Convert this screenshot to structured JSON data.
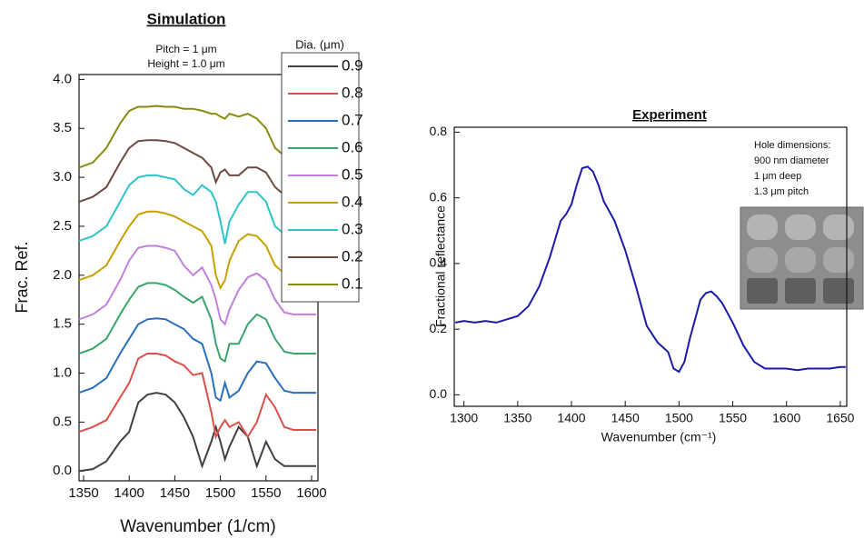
{
  "chart_data": [
    {
      "type": "line",
      "title": "Simulation",
      "annotations": [
        "Pitch = 1 μm",
        "Height = 1.0 μm"
      ],
      "xlabel": "Wavenumber (1/cm)",
      "ylabel": "Frac. Ref.",
      "legend_title": "Dia. (μm)",
      "legend": "upper right",
      "x": [
        1345,
        1360,
        1375,
        1390,
        1400,
        1410,
        1420,
        1430,
        1440,
        1450,
        1460,
        1470,
        1480,
        1490,
        1495,
        1500,
        1505,
        1510,
        1520,
        1530,
        1540,
        1550,
        1560,
        1570,
        1580,
        1590,
        1605
      ],
      "series": [
        {
          "name": "0.9",
          "color": "#404040",
          "values": [
            0.0,
            0.02,
            0.1,
            0.3,
            0.4,
            0.7,
            0.78,
            0.8,
            0.78,
            0.7,
            0.55,
            0.35,
            0.05,
            0.3,
            0.45,
            0.3,
            0.12,
            0.25,
            0.45,
            0.35,
            0.05,
            0.3,
            0.12,
            0.05,
            0.05,
            0.05,
            0.05
          ]
        },
        {
          "name": "0.8",
          "color": "#dc4f4a",
          "values": [
            0.4,
            0.45,
            0.52,
            0.75,
            0.9,
            1.15,
            1.2,
            1.2,
            1.18,
            1.12,
            1.08,
            0.98,
            1.0,
            0.6,
            0.35,
            0.45,
            0.52,
            0.45,
            0.5,
            0.35,
            0.5,
            0.78,
            0.65,
            0.45,
            0.42,
            0.42,
            0.42
          ]
        },
        {
          "name": "0.7",
          "color": "#2a6ebb",
          "values": [
            0.8,
            0.85,
            0.95,
            1.2,
            1.35,
            1.5,
            1.55,
            1.56,
            1.55,
            1.5,
            1.45,
            1.35,
            1.3,
            1.0,
            0.75,
            0.72,
            0.9,
            0.75,
            0.82,
            1.0,
            1.12,
            1.1,
            0.95,
            0.82,
            0.8,
            0.8,
            0.8
          ]
        },
        {
          "name": "0.6",
          "color": "#3aa56a",
          "values": [
            1.2,
            1.25,
            1.35,
            1.6,
            1.75,
            1.88,
            1.92,
            1.92,
            1.9,
            1.85,
            1.78,
            1.72,
            1.78,
            1.55,
            1.3,
            1.15,
            1.12,
            1.3,
            1.3,
            1.5,
            1.6,
            1.55,
            1.35,
            1.22,
            1.2,
            1.2,
            1.2
          ]
        },
        {
          "name": "0.5",
          "color": "#c27fdc",
          "values": [
            1.55,
            1.6,
            1.7,
            1.95,
            2.15,
            2.28,
            2.3,
            2.3,
            2.28,
            2.25,
            2.1,
            2.0,
            2.08,
            1.9,
            1.75,
            1.55,
            1.5,
            1.65,
            1.85,
            1.98,
            2.02,
            1.95,
            1.75,
            1.62,
            1.6,
            1.6,
            1.6
          ]
        },
        {
          "name": "0.4",
          "color": "#c8a000",
          "values": [
            1.95,
            2.0,
            2.1,
            2.35,
            2.5,
            2.62,
            2.65,
            2.65,
            2.63,
            2.6,
            2.55,
            2.5,
            2.45,
            2.3,
            2.0,
            1.87,
            1.95,
            2.15,
            2.35,
            2.42,
            2.4,
            2.3,
            2.1,
            2.02,
            2.0,
            2.0,
            2.0
          ]
        },
        {
          "name": "0.3",
          "color": "#2ec4c8",
          "values": [
            2.35,
            2.4,
            2.5,
            2.75,
            2.92,
            3.0,
            3.02,
            3.02,
            3.0,
            2.98,
            2.88,
            2.82,
            2.92,
            2.85,
            2.75,
            2.55,
            2.32,
            2.55,
            2.72,
            2.85,
            2.85,
            2.75,
            2.5,
            2.42,
            2.4,
            2.4,
            2.4
          ]
        },
        {
          "name": "0.2",
          "color": "#6e4a40",
          "values": [
            2.75,
            2.8,
            2.9,
            3.15,
            3.3,
            3.37,
            3.38,
            3.38,
            3.37,
            3.35,
            3.3,
            3.25,
            3.2,
            3.1,
            2.95,
            3.05,
            3.08,
            3.02,
            3.02,
            3.1,
            3.1,
            3.05,
            2.9,
            2.82,
            2.8,
            2.8,
            2.8
          ]
        },
        {
          "name": "0.1",
          "color": "#8a8a10",
          "values": [
            3.1,
            3.15,
            3.3,
            3.55,
            3.68,
            3.72,
            3.72,
            3.73,
            3.72,
            3.72,
            3.7,
            3.7,
            3.68,
            3.65,
            3.65,
            3.62,
            3.6,
            3.65,
            3.62,
            3.65,
            3.6,
            3.5,
            3.3,
            3.22,
            3.2,
            3.2,
            3.2
          ]
        }
      ],
      "xlim": [
        1345,
        1607
      ],
      "xticks": [
        1350,
        1400,
        1450,
        1500,
        1550,
        1600
      ],
      "ylim": [
        -0.1,
        4.05
      ],
      "yticks": [
        {
          "value": 0,
          "label": "0.0"
        },
        0.5,
        {
          "value": 1,
          "label": "1.0"
        },
        1.5,
        {
          "value": 2,
          "label": "2.0"
        },
        2.5,
        {
          "value": 3,
          "label": "3.0"
        },
        3.5,
        {
          "value": 4,
          "label": "4.0"
        }
      ]
    },
    {
      "type": "line",
      "title": "Experiment",
      "annotations": [
        "Hole dimensions:",
        "900 nm diameter",
        "1 μm deep",
        "1.3 μm pitch"
      ],
      "xlabel": "Wavenumber (cm⁻¹)",
      "ylabel": "Fractional reflectance",
      "color": "#1a1aa8",
      "x": [
        1292,
        1300,
        1310,
        1320,
        1330,
        1340,
        1350,
        1360,
        1370,
        1380,
        1390,
        1395,
        1400,
        1405,
        1410,
        1415,
        1420,
        1425,
        1430,
        1440,
        1450,
        1460,
        1470,
        1480,
        1490,
        1495,
        1500,
        1505,
        1510,
        1520,
        1525,
        1530,
        1535,
        1540,
        1550,
        1560,
        1570,
        1580,
        1590,
        1600,
        1610,
        1620,
        1630,
        1640,
        1650,
        1655
      ],
      "values": [
        0.22,
        0.225,
        0.22,
        0.225,
        0.22,
        0.23,
        0.24,
        0.27,
        0.33,
        0.42,
        0.53,
        0.55,
        0.58,
        0.64,
        0.69,
        0.695,
        0.68,
        0.64,
        0.59,
        0.53,
        0.44,
        0.33,
        0.21,
        0.16,
        0.13,
        0.08,
        0.07,
        0.1,
        0.17,
        0.29,
        0.31,
        0.315,
        0.3,
        0.28,
        0.22,
        0.15,
        0.1,
        0.08,
        0.08,
        0.08,
        0.075,
        0.08,
        0.08,
        0.08,
        0.085,
        0.085
      ],
      "xlim": [
        1291,
        1656
      ],
      "xticks": [
        1300,
        1350,
        1400,
        1450,
        1500,
        1550,
        1600,
        1650
      ],
      "ylim": [
        -0.035,
        0.815
      ],
      "yticks": [
        {
          "value": 0,
          "label": "0.0"
        },
        0.2,
        0.4,
        0.6,
        0.8
      ]
    }
  ]
}
